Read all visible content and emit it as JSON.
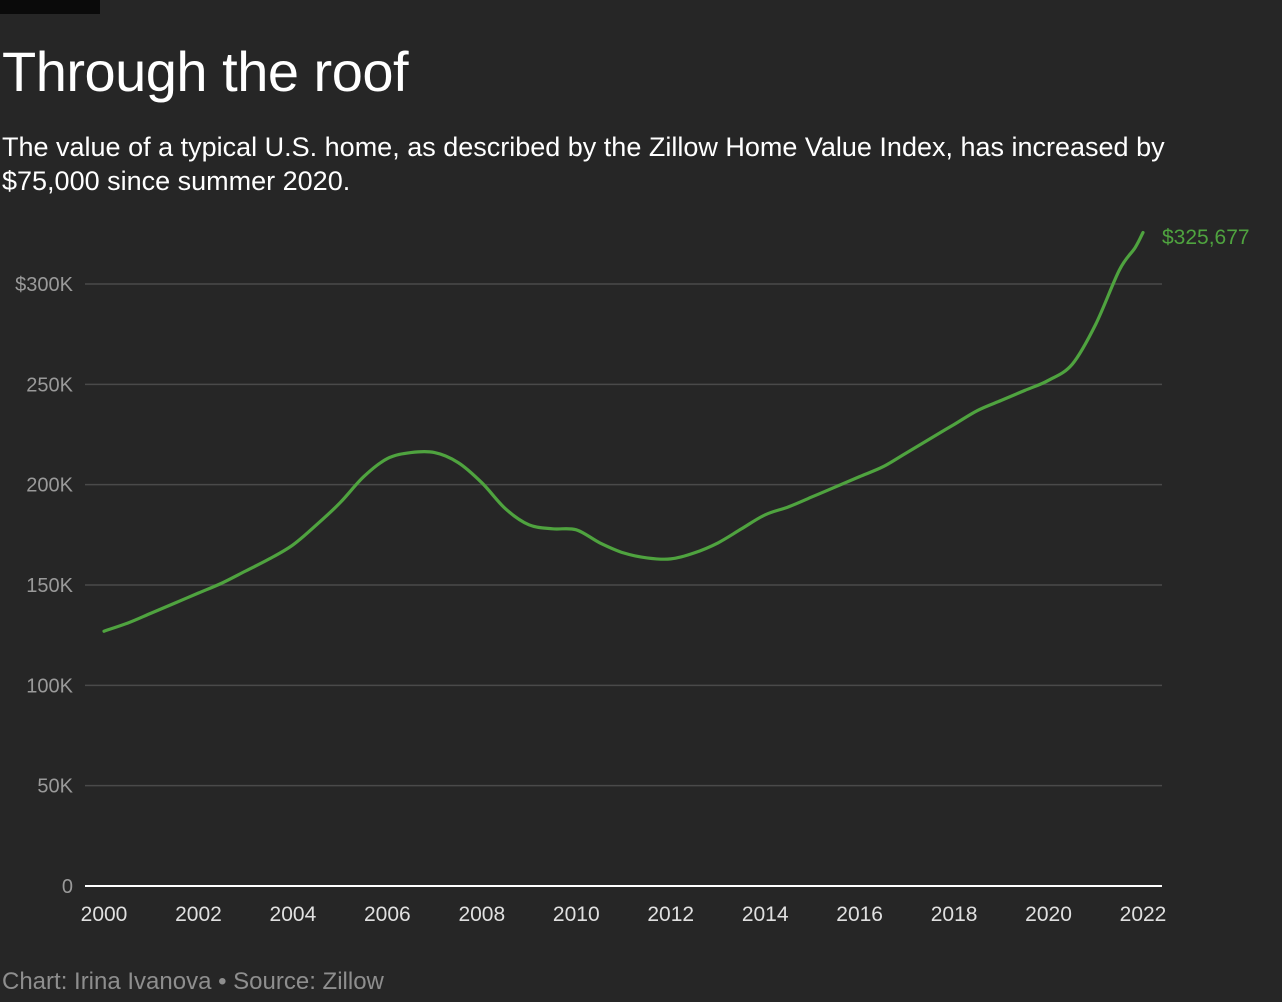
{
  "header": {
    "title": "Through the roof",
    "subtitle": "The value of a typical U.S. home, as described by the Zillow Home Value Index, has increased by $75,000 since summer 2020."
  },
  "footer": {
    "credit": "Chart: Irina Ivanova • Source: Zillow"
  },
  "colors": {
    "background": "#262626",
    "line": "#4fa33f",
    "grid": "#4a4a4a",
    "tick_label": "#9a9a9a",
    "x_tick_label": "#e0e0e0",
    "baseline": "#ffffff"
  },
  "chart_data": {
    "type": "line",
    "title": "Through the roof",
    "xlabel": "",
    "ylabel": "",
    "xlim": [
      2000,
      2022
    ],
    "ylim": [
      0,
      325000
    ],
    "x_ticks": [
      2000,
      2002,
      2004,
      2006,
      2008,
      2010,
      2012,
      2014,
      2016,
      2018,
      2020,
      2022
    ],
    "y_ticks": [
      0,
      50000,
      100000,
      150000,
      200000,
      250000,
      300000
    ],
    "y_tick_labels": [
      "0",
      "50K",
      "100K",
      "150K",
      "200K",
      "250K",
      "$300K"
    ],
    "grid": true,
    "end_label": "$325,677",
    "series": [
      {
        "x": [
          2000.0,
          2000.5,
          2001.0,
          2001.5,
          2002.0,
          2002.5,
          2003.0,
          2003.5,
          2004.0,
          2004.5,
          2005.0,
          2005.5,
          2006.0,
          2006.5,
          2007.0,
          2007.5,
          2008.0,
          2008.5,
          2009.0,
          2009.5,
          2010.0,
          2010.5,
          2011.0,
          2011.5,
          2012.0,
          2012.5,
          2013.0,
          2013.5,
          2014.0,
          2014.5,
          2015.0,
          2015.5,
          2016.0,
          2016.5,
          2017.0,
          2017.5,
          2018.0,
          2018.5,
          2019.0,
          2019.5,
          2020.0,
          2020.5,
          2021.0,
          2021.5,
          2021.83,
          2022.0
        ],
        "values": [
          127000,
          131000,
          136000,
          141000,
          146000,
          151000,
          157000,
          163000,
          170000,
          180000,
          191000,
          204000,
          213000,
          216000,
          216000,
          211000,
          201000,
          188000,
          180000,
          178000,
          177500,
          171000,
          166000,
          163500,
          163000,
          166000,
          171000,
          178000,
          185000,
          189000,
          194000,
          199000,
          204000,
          209000,
          216000,
          223000,
          230000,
          237000,
          242000,
          247000,
          252000,
          260000,
          280000,
          307000,
          318000,
          325677
        ]
      }
    ]
  }
}
